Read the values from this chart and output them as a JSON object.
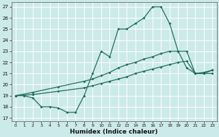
{
  "xlabel": "Humidex (Indice chaleur)",
  "bg_color": "#cdeaea",
  "line_color": "#1a6b5a",
  "grid_color": "#b8d8d8",
  "x_ticks": [
    0,
    1,
    2,
    3,
    4,
    5,
    6,
    7,
    8,
    9,
    10,
    11,
    12,
    13,
    14,
    15,
    16,
    17,
    18,
    19,
    20,
    21,
    22,
    23
  ],
  "y_ticks": [
    17,
    18,
    19,
    20,
    21,
    22,
    23,
    24,
    25,
    26,
    27
  ],
  "xlim": [
    -0.5,
    23.5
  ],
  "ylim": [
    16.7,
    27.4
  ],
  "line1_x": [
    0,
    1,
    2,
    3,
    4,
    5,
    6,
    7,
    8,
    9,
    10,
    11,
    12,
    13,
    14,
    15,
    16,
    17,
    18,
    19,
    20,
    21,
    22,
    23
  ],
  "line1_y": [
    19.0,
    19.0,
    18.8,
    18.0,
    18.0,
    17.9,
    17.5,
    17.5,
    19.0,
    21.0,
    23.0,
    22.5,
    25.0,
    25.0,
    25.5,
    26.0,
    27.0,
    27.0,
    25.5,
    23.0,
    21.5,
    21.0,
    21.0,
    21.0
  ],
  "line2_x": [
    0,
    2,
    5,
    8,
    9,
    10,
    11,
    12,
    13,
    14,
    15,
    16,
    17,
    18,
    19,
    20,
    21,
    22,
    23
  ],
  "line2_y": [
    19.0,
    19.3,
    19.8,
    20.3,
    20.5,
    20.8,
    21.1,
    21.5,
    21.8,
    22.0,
    22.3,
    22.5,
    22.8,
    23.0,
    23.0,
    23.0,
    21.0,
    21.0,
    21.3
  ],
  "line3_x": [
    0,
    2,
    5,
    8,
    9,
    10,
    11,
    12,
    13,
    14,
    15,
    16,
    17,
    18,
    19,
    20,
    21,
    22,
    23
  ],
  "line3_y": [
    19.0,
    19.1,
    19.4,
    19.7,
    19.9,
    20.1,
    20.3,
    20.5,
    20.7,
    21.0,
    21.2,
    21.4,
    21.6,
    21.8,
    22.0,
    22.1,
    21.0,
    21.1,
    21.3
  ]
}
